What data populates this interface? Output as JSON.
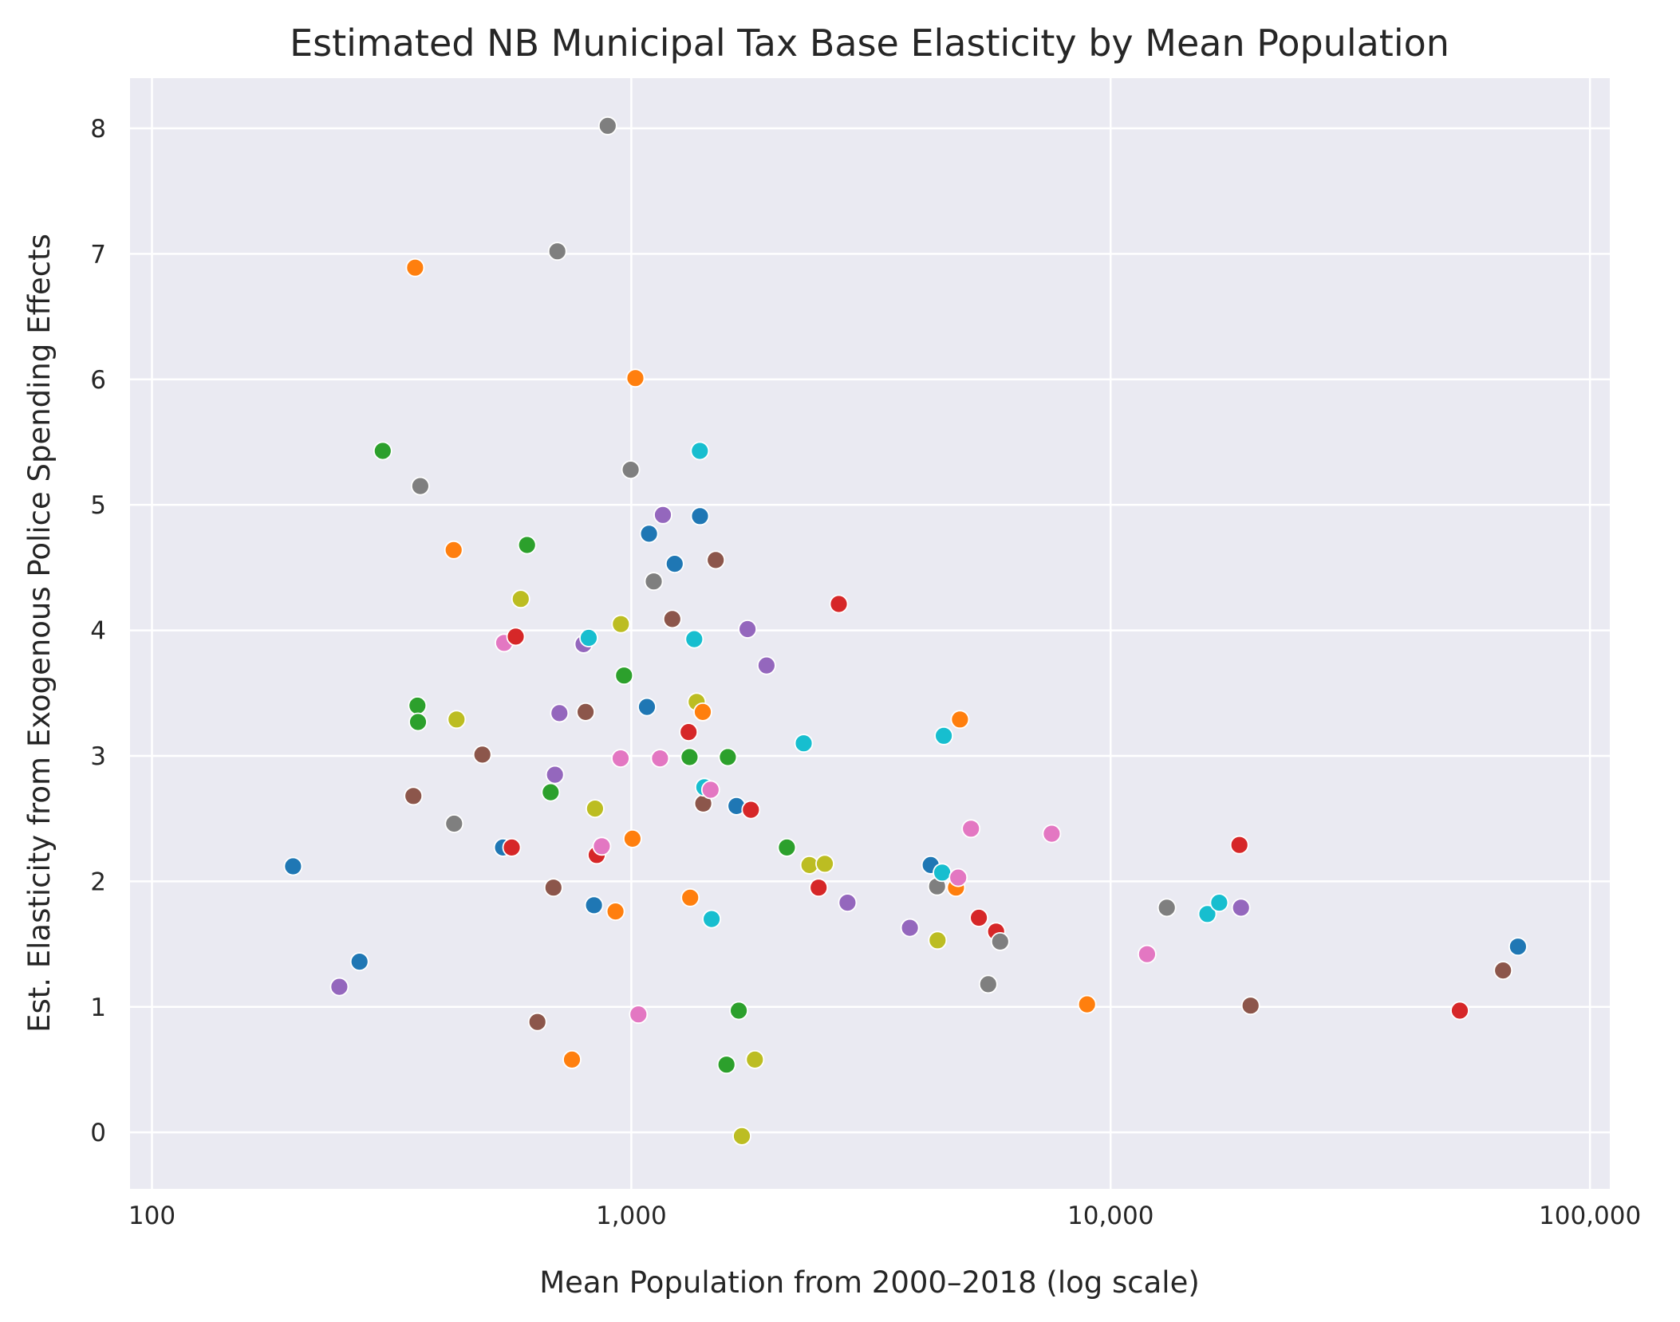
{
  "chart_data": {
    "type": "scatter",
    "title": "Estimated NB Municipal Tax Base Elasticity by Mean Population",
    "xlabel": "Mean Population from 2000–2018 (log scale)",
    "ylabel": "Est. Elasticity from Exogenous Police Spending Effects",
    "x_scale": "log",
    "xlim": [
      90,
      110000
    ],
    "ylim": [
      -0.45,
      8.4
    ],
    "x_ticks": [
      {
        "value": 100,
        "label": "100"
      },
      {
        "value": 1000,
        "label": "1,000"
      },
      {
        "value": 10000,
        "label": "10,000"
      },
      {
        "value": 100000,
        "label": "100,000"
      }
    ],
    "y_ticks": [
      {
        "value": 0,
        "label": "0"
      },
      {
        "value": 1,
        "label": "1"
      },
      {
        "value": 2,
        "label": "2"
      },
      {
        "value": 3,
        "label": "3"
      },
      {
        "value": 4,
        "label": "4"
      },
      {
        "value": 5,
        "label": "5"
      },
      {
        "value": 6,
        "label": "6"
      },
      {
        "value": 7,
        "label": "7"
      },
      {
        "value": 8,
        "label": "8"
      }
    ],
    "grid": true,
    "background_color": "#eaeaf2",
    "grid_color": "#ffffff",
    "marker_edge_color": "#ffffff",
    "colors": {
      "blue": "#1f77b4",
      "orange": "#ff7f0e",
      "green": "#2ca02c",
      "red": "#d62728",
      "purple": "#9467bd",
      "brown": "#8c564b",
      "pink": "#e377c2",
      "gray": "#7f7f7f",
      "olive": "#bcbd22",
      "cyan": "#17becf"
    },
    "points": [
      {
        "x": 197,
        "y": 2.12,
        "color": "blue"
      },
      {
        "x": 246,
        "y": 1.16,
        "color": "purple"
      },
      {
        "x": 271,
        "y": 1.36,
        "color": "blue"
      },
      {
        "x": 303,
        "y": 5.43,
        "color": "green"
      },
      {
        "x": 351,
        "y": 2.68,
        "color": "brown"
      },
      {
        "x": 354,
        "y": 6.89,
        "color": "orange"
      },
      {
        "x": 358,
        "y": 3.4,
        "color": "green"
      },
      {
        "x": 359,
        "y": 3.27,
        "color": "green"
      },
      {
        "x": 363,
        "y": 5.15,
        "color": "gray"
      },
      {
        "x": 426,
        "y": 4.64,
        "color": "orange"
      },
      {
        "x": 427,
        "y": 2.46,
        "color": "gray"
      },
      {
        "x": 432,
        "y": 3.29,
        "color": "olive"
      },
      {
        "x": 489,
        "y": 3.01,
        "color": "brown"
      },
      {
        "x": 540,
        "y": 2.27,
        "color": "blue"
      },
      {
        "x": 543,
        "y": 3.9,
        "color": "pink"
      },
      {
        "x": 563,
        "y": 2.27,
        "color": "red"
      },
      {
        "x": 574,
        "y": 3.95,
        "color": "red"
      },
      {
        "x": 588,
        "y": 4.25,
        "color": "olive"
      },
      {
        "x": 606,
        "y": 4.68,
        "color": "green"
      },
      {
        "x": 637,
        "y": 0.88,
        "color": "brown"
      },
      {
        "x": 679,
        "y": 2.71,
        "color": "green"
      },
      {
        "x": 688,
        "y": 1.95,
        "color": "brown"
      },
      {
        "x": 693,
        "y": 2.85,
        "color": "purple"
      },
      {
        "x": 701,
        "y": 7.02,
        "color": "gray"
      },
      {
        "x": 708,
        "y": 3.34,
        "color": "purple"
      },
      {
        "x": 752,
        "y": 0.58,
        "color": "orange"
      },
      {
        "x": 795,
        "y": 3.89,
        "color": "purple"
      },
      {
        "x": 803,
        "y": 3.35,
        "color": "brown"
      },
      {
        "x": 815,
        "y": 3.94,
        "color": "cyan"
      },
      {
        "x": 836,
        "y": 1.81,
        "color": "blue"
      },
      {
        "x": 840,
        "y": 2.58,
        "color": "olive"
      },
      {
        "x": 847,
        "y": 2.21,
        "color": "red"
      },
      {
        "x": 868,
        "y": 2.28,
        "color": "pink"
      },
      {
        "x": 893,
        "y": 8.02,
        "color": "gray"
      },
      {
        "x": 927,
        "y": 1.76,
        "color": "orange"
      },
      {
        "x": 950,
        "y": 2.98,
        "color": "pink"
      },
      {
        "x": 951,
        "y": 4.05,
        "color": "olive"
      },
      {
        "x": 966,
        "y": 3.64,
        "color": "green"
      },
      {
        "x": 997,
        "y": 5.28,
        "color": "gray"
      },
      {
        "x": 1006,
        "y": 2.34,
        "color": "orange"
      },
      {
        "x": 1020,
        "y": 6.01,
        "color": "orange"
      },
      {
        "x": 1035,
        "y": 0.94,
        "color": "pink"
      },
      {
        "x": 1078,
        "y": 3.39,
        "color": "blue"
      },
      {
        "x": 1089,
        "y": 4.77,
        "color": "blue"
      },
      {
        "x": 1114,
        "y": 4.39,
        "color": "gray"
      },
      {
        "x": 1148,
        "y": 2.98,
        "color": "pink"
      },
      {
        "x": 1164,
        "y": 4.92,
        "color": "purple"
      },
      {
        "x": 1218,
        "y": 4.09,
        "color": "brown"
      },
      {
        "x": 1232,
        "y": 4.53,
        "color": "blue"
      },
      {
        "x": 1317,
        "y": 3.19,
        "color": "red"
      },
      {
        "x": 1323,
        "y": 2.99,
        "color": "green"
      },
      {
        "x": 1327,
        "y": 1.87,
        "color": "orange"
      },
      {
        "x": 1353,
        "y": 3.93,
        "color": "cyan"
      },
      {
        "x": 1369,
        "y": 3.43,
        "color": "olive"
      },
      {
        "x": 1390,
        "y": 5.43,
        "color": "cyan"
      },
      {
        "x": 1391,
        "y": 4.91,
        "color": "blue"
      },
      {
        "x": 1410,
        "y": 3.35,
        "color": "orange"
      },
      {
        "x": 1413,
        "y": 2.62,
        "color": "brown"
      },
      {
        "x": 1420,
        "y": 2.75,
        "color": "cyan"
      },
      {
        "x": 1464,
        "y": 2.73,
        "color": "pink"
      },
      {
        "x": 1471,
        "y": 1.7,
        "color": "cyan"
      },
      {
        "x": 1500,
        "y": 4.56,
        "color": "brown"
      },
      {
        "x": 1580,
        "y": 0.54,
        "color": "green"
      },
      {
        "x": 1590,
        "y": 2.99,
        "color": "green"
      },
      {
        "x": 1657,
        "y": 2.6,
        "color": "blue"
      },
      {
        "x": 1676,
        "y": 0.97,
        "color": "green"
      },
      {
        "x": 1701,
        "y": -0.03,
        "color": "olive"
      },
      {
        "x": 1748,
        "y": 4.01,
        "color": "purple"
      },
      {
        "x": 1776,
        "y": 2.57,
        "color": "red"
      },
      {
        "x": 1811,
        "y": 0.58,
        "color": "olive"
      },
      {
        "x": 1915,
        "y": 3.72,
        "color": "purple"
      },
      {
        "x": 2111,
        "y": 2.27,
        "color": "green"
      },
      {
        "x": 2289,
        "y": 3.1,
        "color": "cyan"
      },
      {
        "x": 2353,
        "y": 2.13,
        "color": "olive"
      },
      {
        "x": 2459,
        "y": 1.95,
        "color": "red"
      },
      {
        "x": 2534,
        "y": 2.14,
        "color": "olive"
      },
      {
        "x": 2710,
        "y": 4.21,
        "color": "red"
      },
      {
        "x": 2825,
        "y": 1.83,
        "color": "purple"
      },
      {
        "x": 3813,
        "y": 1.63,
        "color": "purple"
      },
      {
        "x": 4213,
        "y": 2.13,
        "color": "blue"
      },
      {
        "x": 4344,
        "y": 1.96,
        "color": "gray"
      },
      {
        "x": 4354,
        "y": 1.53,
        "color": "olive"
      },
      {
        "x": 4453,
        "y": 2.07,
        "color": "cyan"
      },
      {
        "x": 4487,
        "y": 3.16,
        "color": "cyan"
      },
      {
        "x": 4757,
        "y": 1.95,
        "color": "orange"
      },
      {
        "x": 4809,
        "y": 2.03,
        "color": "pink"
      },
      {
        "x": 4849,
        "y": 3.29,
        "color": "orange"
      },
      {
        "x": 5113,
        "y": 2.42,
        "color": "pink"
      },
      {
        "x": 5311,
        "y": 1.71,
        "color": "red"
      },
      {
        "x": 5554,
        "y": 1.18,
        "color": "gray"
      },
      {
        "x": 5769,
        "y": 1.6,
        "color": "red"
      },
      {
        "x": 5883,
        "y": 1.52,
        "color": "gray"
      },
      {
        "x": 7534,
        "y": 2.38,
        "color": "pink"
      },
      {
        "x": 8931,
        "y": 1.02,
        "color": "orange"
      },
      {
        "x": 11911,
        "y": 1.42,
        "color": "pink"
      },
      {
        "x": 13100,
        "y": 1.79,
        "color": "gray"
      },
      {
        "x": 15915,
        "y": 1.74,
        "color": "cyan"
      },
      {
        "x": 16852,
        "y": 1.83,
        "color": "cyan"
      },
      {
        "x": 18566,
        "y": 2.29,
        "color": "red"
      },
      {
        "x": 18711,
        "y": 1.79,
        "color": "purple"
      },
      {
        "x": 19590,
        "y": 1.01,
        "color": "brown"
      },
      {
        "x": 53520,
        "y": 0.97,
        "color": "red"
      },
      {
        "x": 65883,
        "y": 1.29,
        "color": "brown"
      },
      {
        "x": 70758,
        "y": 1.48,
        "color": "blue"
      }
    ]
  }
}
